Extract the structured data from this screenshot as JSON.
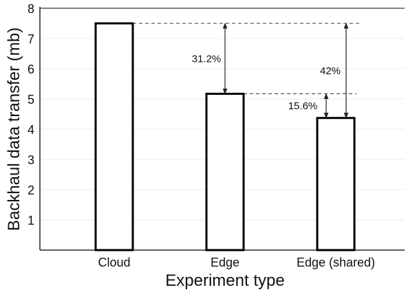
{
  "chart_data": {
    "type": "bar",
    "categories": [
      "Cloud",
      "Edge",
      "Edge (shared)"
    ],
    "values": [
      7.5,
      5.17,
      4.37
    ],
    "xlabel": "Experiment type",
    "ylabel": "Backhaul data transfer (mb)",
    "ylim": [
      0,
      8
    ],
    "yticks": [
      "1",
      "2",
      "3",
      "4",
      "5",
      "6",
      "7",
      "8"
    ],
    "grid": true,
    "annotations": [
      {
        "label": "31.2%",
        "from_value": 7.5,
        "to_value": 5.17,
        "category": "Edge"
      },
      {
        "label": "15.6%",
        "from_value": 5.17,
        "to_value": 4.37,
        "category": "Edge (shared)",
        "side": "left"
      },
      {
        "label": "42%",
        "from_value": 7.5,
        "to_value": 4.37,
        "category": "Edge (shared)",
        "side": "right"
      }
    ],
    "colors": {
      "bar_fill": "#ffffff",
      "bar_stroke": "#000000",
      "grid": "#ebebeb"
    }
  }
}
